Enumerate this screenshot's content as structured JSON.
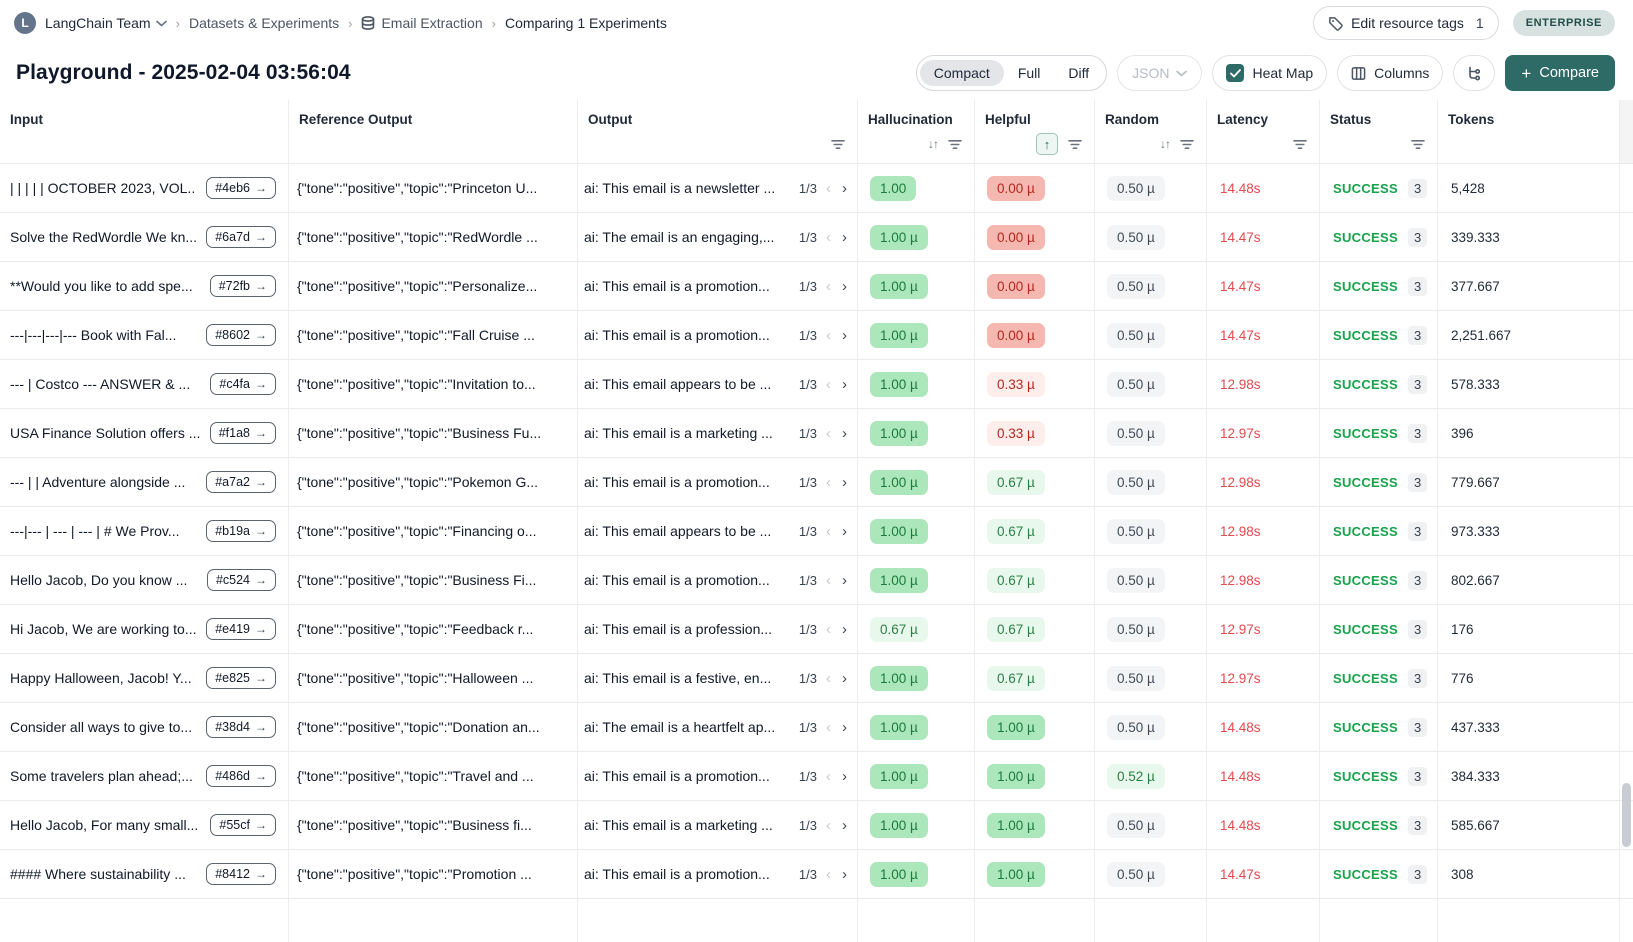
{
  "breadcrumb": {
    "team": "LangChain Team",
    "avatar_letter": "L",
    "items": [
      "Datasets & Experiments",
      "Email Extraction",
      "Comparing 1 Experiments"
    ]
  },
  "header_actions": {
    "edit_tags_label": "Edit resource tags",
    "edit_tags_count": "1",
    "plan_badge": "ENTERPRISE"
  },
  "toolbar": {
    "title": "Playground - 2025-02-04 03:56:04",
    "view_modes": [
      "Compact",
      "Full",
      "Diff"
    ],
    "active_view": "Compact",
    "format_select": "JSON",
    "heatmap_label": "Heat Map",
    "heatmap_checked": true,
    "columns_label": "Columns",
    "compare_label": "Compare",
    "compare_plus": "+"
  },
  "colors": {
    "accent_teal": "#2e6b66",
    "success_green": "#16a34a",
    "latency_red": "#e5484d",
    "badge_green_bg": "#abe7ba",
    "badge_red_bg": "#f5b8b1"
  },
  "table": {
    "columns": [
      {
        "label": "Input",
        "sort": null,
        "filter": false
      },
      {
        "label": "Reference Output",
        "sort": null,
        "filter": false
      },
      {
        "label": "Output",
        "sort": null,
        "filter": true
      },
      {
        "label": "Hallucination",
        "sort": "both",
        "filter": true
      },
      {
        "label": "Helpful",
        "sort": "asc-active",
        "filter": true
      },
      {
        "label": "Random",
        "sort": "both",
        "filter": true
      },
      {
        "label": "Latency",
        "sort": null,
        "filter": true
      },
      {
        "label": "Status",
        "sort": null,
        "filter": true
      },
      {
        "label": "Tokens",
        "sort": null,
        "filter": false
      }
    ],
    "rows": [
      {
        "input": "| | | | | OCTOBER 2023, VOL...",
        "id": "#4eb6",
        "ref": "{\"tone\":\"positive\",\"topic\":\"Princeton U...",
        "output": "ai: This email is a newsletter ...",
        "page": "1/3",
        "hallucination": {
          "text": "1.00",
          "style": "green"
        },
        "helpful": {
          "text": "0.00 µ",
          "style": "red"
        },
        "random": {
          "text": "0.50 µ",
          "style": "gray"
        },
        "latency": "14.48s",
        "status": "SUCCESS",
        "status_count": "3",
        "tokens": "5,428"
      },
      {
        "input": "Solve the RedWordle We kn...",
        "id": "#6a7d",
        "ref": "{\"tone\":\"positive\",\"topic\":\"RedWordle ...",
        "output": "ai: The email is an engaging,...",
        "page": "1/3",
        "hallucination": {
          "text": "1.00 µ",
          "style": "green"
        },
        "helpful": {
          "text": "0.00 µ",
          "style": "red"
        },
        "random": {
          "text": "0.50 µ",
          "style": "gray"
        },
        "latency": "14.47s",
        "status": "SUCCESS",
        "status_count": "3",
        "tokens": "339.333"
      },
      {
        "input": "**Would you like to add spe...",
        "id": "#72fb",
        "ref": "{\"tone\":\"positive\",\"topic\":\"Personalize...",
        "output": "ai: This email is a promotion...",
        "page": "1/3",
        "hallucination": {
          "text": "1.00 µ",
          "style": "green"
        },
        "helpful": {
          "text": "0.00 µ",
          "style": "red"
        },
        "random": {
          "text": "0.50 µ",
          "style": "gray"
        },
        "latency": "14.47s",
        "status": "SUCCESS",
        "status_count": "3",
        "tokens": "377.667"
      },
      {
        "input": "---|---|---|--- Book with Fal...",
        "id": "#8602",
        "ref": "{\"tone\":\"positive\",\"topic\":\"Fall Cruise ...",
        "output": "ai: This email is a promotion...",
        "page": "1/3",
        "hallucination": {
          "text": "1.00 µ",
          "style": "green"
        },
        "helpful": {
          "text": "0.00 µ",
          "style": "red"
        },
        "random": {
          "text": "0.50 µ",
          "style": "gray"
        },
        "latency": "14.47s",
        "status": "SUCCESS",
        "status_count": "3",
        "tokens": "2,251.667"
      },
      {
        "input": "--- | Costco --- ANSWER & ...",
        "id": "#c4fa",
        "ref": "{\"tone\":\"positive\",\"topic\":\"Invitation to...",
        "output": "ai: This email appears to be ...",
        "page": "1/3",
        "hallucination": {
          "text": "1.00 µ",
          "style": "green"
        },
        "helpful": {
          "text": "0.33 µ",
          "style": "red-light"
        },
        "random": {
          "text": "0.50 µ",
          "style": "gray"
        },
        "latency": "12.98s",
        "status": "SUCCESS",
        "status_count": "3",
        "tokens": "578.333"
      },
      {
        "input": "USA Finance Solution offers ...",
        "id": "#f1a8",
        "ref": "{\"tone\":\"positive\",\"topic\":\"Business Fu...",
        "output": "ai: This email is a marketing ...",
        "page": "1/3",
        "hallucination": {
          "text": "1.00 µ",
          "style": "green"
        },
        "helpful": {
          "text": "0.33 µ",
          "style": "red-light"
        },
        "random": {
          "text": "0.50 µ",
          "style": "gray"
        },
        "latency": "12.97s",
        "status": "SUCCESS",
        "status_count": "3",
        "tokens": "396"
      },
      {
        "input": "--- | | Adventure alongside ...",
        "id": "#a7a2",
        "ref": "{\"tone\":\"positive\",\"topic\":\"Pokemon G...",
        "output": "ai: This email is a promotion...",
        "page": "1/3",
        "hallucination": {
          "text": "1.00 µ",
          "style": "green"
        },
        "helpful": {
          "text": "0.67 µ",
          "style": "green-light"
        },
        "random": {
          "text": "0.50 µ",
          "style": "gray"
        },
        "latency": "12.98s",
        "status": "SUCCESS",
        "status_count": "3",
        "tokens": "779.667"
      },
      {
        "input": "---|--- | --- | --- | # We Prov...",
        "id": "#b19a",
        "ref": "{\"tone\":\"positive\",\"topic\":\"Financing o...",
        "output": "ai: This email appears to be ...",
        "page": "1/3",
        "hallucination": {
          "text": "1.00 µ",
          "style": "green"
        },
        "helpful": {
          "text": "0.67 µ",
          "style": "green-light"
        },
        "random": {
          "text": "0.50 µ",
          "style": "gray"
        },
        "latency": "12.98s",
        "status": "SUCCESS",
        "status_count": "3",
        "tokens": "973.333"
      },
      {
        "input": "Hello Jacob, Do you know ...",
        "id": "#c524",
        "ref": "{\"tone\":\"positive\",\"topic\":\"Business Fi...",
        "output": "ai: This email is a promotion...",
        "page": "1/3",
        "hallucination": {
          "text": "1.00 µ",
          "style": "green"
        },
        "helpful": {
          "text": "0.67 µ",
          "style": "green-light"
        },
        "random": {
          "text": "0.50 µ",
          "style": "gray"
        },
        "latency": "12.98s",
        "status": "SUCCESS",
        "status_count": "3",
        "tokens": "802.667"
      },
      {
        "input": "Hi Jacob, We are working to...",
        "id": "#e419",
        "ref": "{\"tone\":\"positive\",\"topic\":\"Feedback r...",
        "output": "ai: This email is a profession...",
        "page": "1/3",
        "hallucination": {
          "text": "0.67 µ",
          "style": "green-light"
        },
        "helpful": {
          "text": "0.67 µ",
          "style": "green-light"
        },
        "random": {
          "text": "0.50 µ",
          "style": "gray"
        },
        "latency": "12.97s",
        "status": "SUCCESS",
        "status_count": "3",
        "tokens": "176"
      },
      {
        "input": "Happy Halloween, Jacob! Y...",
        "id": "#e825",
        "ref": "{\"tone\":\"positive\",\"topic\":\"Halloween ...",
        "output": "ai: This email is a festive, en...",
        "page": "1/3",
        "hallucination": {
          "text": "1.00 µ",
          "style": "green"
        },
        "helpful": {
          "text": "0.67 µ",
          "style": "green-light"
        },
        "random": {
          "text": "0.50 µ",
          "style": "gray"
        },
        "latency": "12.97s",
        "status": "SUCCESS",
        "status_count": "3",
        "tokens": "776"
      },
      {
        "input": "Consider all ways to give to...",
        "id": "#38d4",
        "ref": "{\"tone\":\"positive\",\"topic\":\"Donation an...",
        "output": "ai: The email is a heartfelt ap...",
        "page": "1/3",
        "hallucination": {
          "text": "1.00 µ",
          "style": "green"
        },
        "helpful": {
          "text": "1.00 µ",
          "style": "green"
        },
        "random": {
          "text": "0.50 µ",
          "style": "gray"
        },
        "latency": "14.48s",
        "status": "SUCCESS",
        "status_count": "3",
        "tokens": "437.333"
      },
      {
        "input": "Some travelers plan ahead;...",
        "id": "#486d",
        "ref": "{\"tone\":\"positive\",\"topic\":\"Travel and ...",
        "output": "ai: This email is a promotion...",
        "page": "1/3",
        "hallucination": {
          "text": "1.00 µ",
          "style": "green"
        },
        "helpful": {
          "text": "1.00 µ",
          "style": "green"
        },
        "random": {
          "text": "0.52 µ",
          "style": "green-light"
        },
        "latency": "14.48s",
        "status": "SUCCESS",
        "status_count": "3",
        "tokens": "384.333"
      },
      {
        "input": "Hello Jacob, For many small...",
        "id": "#55cf",
        "ref": "{\"tone\":\"positive\",\"topic\":\"Business fi...",
        "output": "ai: This email is a marketing ...",
        "page": "1/3",
        "hallucination": {
          "text": "1.00 µ",
          "style": "green"
        },
        "helpful": {
          "text": "1.00 µ",
          "style": "green"
        },
        "random": {
          "text": "0.50 µ",
          "style": "gray"
        },
        "latency": "14.48s",
        "status": "SUCCESS",
        "status_count": "3",
        "tokens": "585.667"
      },
      {
        "input": "#### Where sustainability ...",
        "id": "#8412",
        "ref": "{\"tone\":\"positive\",\"topic\":\"Promotion ...",
        "output": "ai: This email is a promotion...",
        "page": "1/3",
        "hallucination": {
          "text": "1.00 µ",
          "style": "green"
        },
        "helpful": {
          "text": "1.00 µ",
          "style": "green"
        },
        "random": {
          "text": "0.50 µ",
          "style": "gray"
        },
        "latency": "14.47s",
        "status": "SUCCESS",
        "status_count": "3",
        "tokens": "308"
      }
    ],
    "pager_prev": "‹",
    "pager_next": "›",
    "sort_glyph": "↓↑",
    "sort_asc_glyph": "↑"
  }
}
